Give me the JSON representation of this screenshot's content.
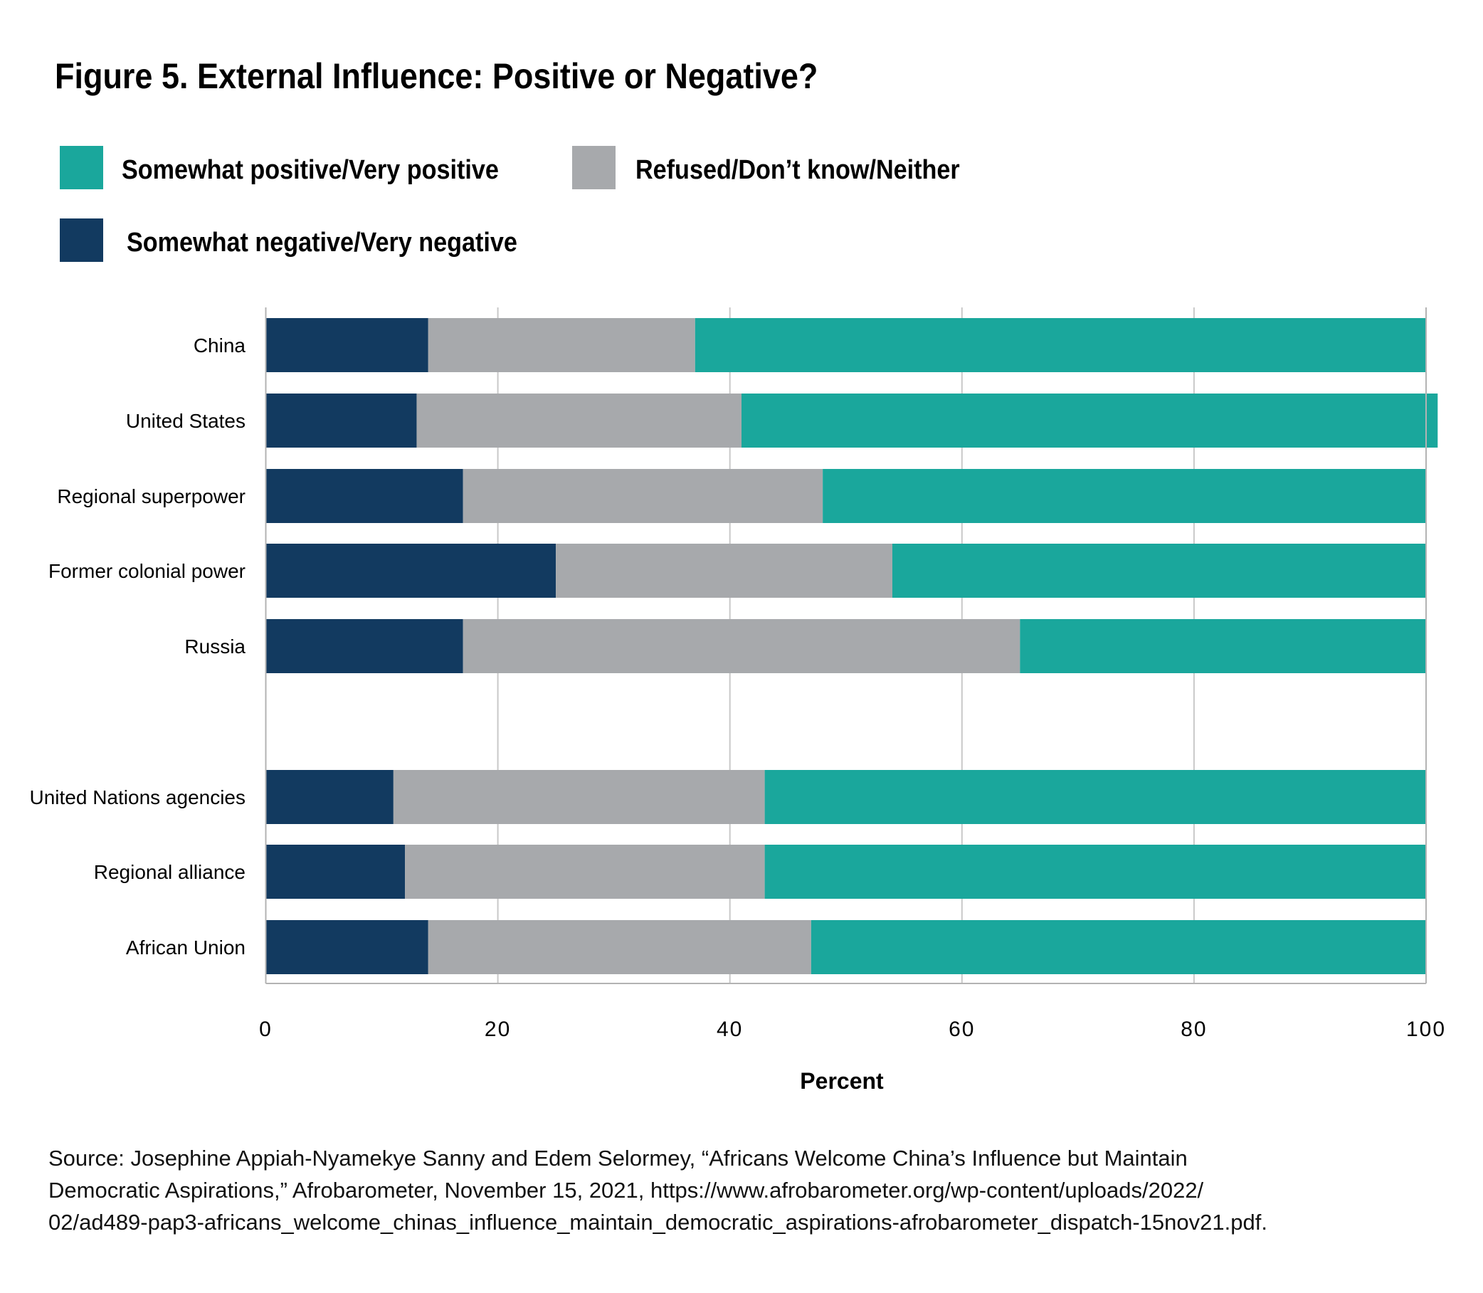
{
  "chart_data": {
    "type": "bar",
    "orientation": "horizontal",
    "stacked": true,
    "title": "Figure 5. External Influence: Positive or Negative?",
    "xlabel": "Percent",
    "ylabel": "",
    "xlim": [
      0,
      100
    ],
    "xticks": [
      "0",
      "20",
      "40",
      "60",
      "80",
      "100"
    ],
    "grid": true,
    "legend_position": "top-left",
    "categories": [
      "China",
      "United States",
      "Regional superpower",
      "Former colonial power",
      "Russia",
      "United Nations agencies",
      "Regional alliance",
      "African Union"
    ],
    "groups": [
      [
        "China",
        "United States",
        "Regional superpower",
        "Former colonial power",
        "Russia"
      ],
      [
        "United Nations agencies",
        "Regional alliance",
        "African Union"
      ]
    ],
    "series": [
      {
        "name": "Somewhat negative/Very negative",
        "color": "#123a60",
        "values": [
          14,
          13,
          17,
          25,
          17,
          11,
          12,
          14
        ]
      },
      {
        "name": "Refused/Don’t know/Neither",
        "color": "#a7a9ac",
        "values": [
          23,
          28,
          31,
          29,
          48,
          32,
          31,
          33
        ]
      },
      {
        "name": "Somewhat positive/Very positive",
        "color": "#1aa79c",
        "values": [
          63,
          60,
          52,
          46,
          35,
          57,
          57,
          53
        ]
      }
    ]
  },
  "legend": [
    {
      "label": "Somewhat positive/Very positive",
      "color": "#1aa79c"
    },
    {
      "label": "Refused/Don’t know/Neither",
      "color": "#a7a9ac"
    },
    {
      "label": "Somewhat negative/Very negative",
      "color": "#123a60"
    }
  ],
  "source": {
    "lines": [
      "Source: Josephine Appiah-Nyamekye Sanny and Edem Selormey, “Africans Welcome China’s Influence but Maintain",
      "Democratic Aspirations,” Afrobarometer, November 15, 2021, https://www.afrobarometer.org/wp-content/uploads/2022/",
      "02/ad489-pap3-africans_welcome_chinas_influence_maintain_democratic_aspirations-afrobarometer_dispatch-15nov21.pdf."
    ]
  }
}
